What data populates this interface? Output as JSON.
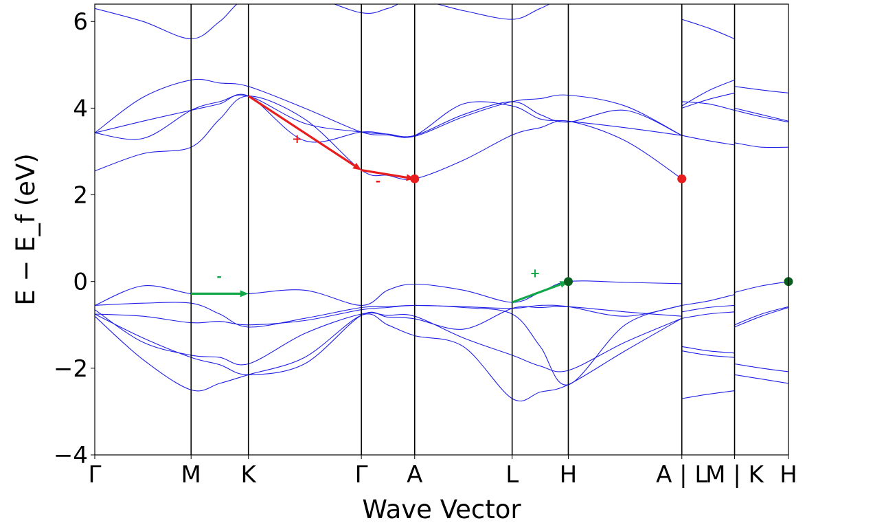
{
  "chart_data": {
    "type": "line",
    "xlabel": "Wave Vector",
    "ylabel": "E − E_f (eV)",
    "ylim": [
      -4,
      6.4
    ],
    "xlim": [
      0,
      12.1
    ],
    "grid": false,
    "yticks": [
      -4,
      -2,
      0,
      2,
      4,
      6
    ],
    "ytick_labels": [
      "−4",
      "−2",
      "0",
      "2",
      "4",
      "6"
    ],
    "xticks": [
      {
        "x": 0.0,
        "label": "Γ"
      },
      {
        "x": 1.68,
        "label": "M"
      },
      {
        "x": 2.68,
        "label": "K"
      },
      {
        "x": 4.65,
        "label": "Γ"
      },
      {
        "x": 5.58,
        "label": "A"
      },
      {
        "x": 7.28,
        "label": "L"
      },
      {
        "x": 8.26,
        "label": "H"
      },
      {
        "x": 10.24,
        "label": "A | L"
      },
      {
        "x": 11.16,
        "label": "M | K"
      },
      {
        "x": 12.1,
        "label": "H"
      }
    ],
    "band_color": "#1f1fe6",
    "series": [
      {
        "x": [
          0.0,
          0.84,
          1.68,
          2.18,
          2.68,
          3.66,
          4.65,
          5.11,
          5.58,
          6.43,
          7.28,
          7.77,
          8.26,
          9.25,
          10.24
        ],
        "values": [
          -0.75,
          -1.3,
          -1.75,
          -1.92,
          -2.15,
          -1.9,
          -0.78,
          -0.82,
          -0.86,
          -1.1,
          -0.62,
          -0.6,
          -0.58,
          -0.7,
          -0.8
        ]
      },
      {
        "x": [
          0.0,
          0.84,
          1.68,
          2.18,
          2.68,
          3.66,
          4.65,
          5.11,
          5.58,
          6.43,
          7.28,
          7.77,
          8.26,
          9.25,
          10.24
        ],
        "values": [
          -0.8,
          -1.8,
          -2.5,
          -2.35,
          -2.15,
          -1.75,
          -0.78,
          -1.0,
          -1.25,
          -1.5,
          -2.7,
          -2.55,
          -2.38,
          -1.6,
          -0.85
        ]
      },
      {
        "x": [
          0.0,
          0.84,
          1.68,
          2.18,
          2.68,
          3.66,
          4.65,
          5.11,
          5.58,
          6.43,
          7.28,
          7.77,
          8.26,
          9.25,
          10.24
        ],
        "values": [
          -0.65,
          -1.4,
          -1.7,
          -1.75,
          -1.9,
          -1.2,
          -0.75,
          -0.78,
          -0.8,
          -1.3,
          -1.7,
          -1.95,
          -2.05,
          -1.4,
          -0.85
        ]
      },
      {
        "x": [
          0.0,
          0.84,
          1.68,
          2.18,
          2.68,
          3.66,
          4.65,
          5.11,
          5.58,
          6.43,
          7.28,
          7.77,
          8.26,
          9.25,
          10.24
        ],
        "values": [
          -0.75,
          -0.8,
          -0.95,
          -0.92,
          -1.0,
          -0.9,
          -0.65,
          -0.6,
          -0.55,
          -0.6,
          -0.75,
          -1.5,
          -2.38,
          -1.0,
          -0.55
        ]
      },
      {
        "x": [
          0.0,
          0.84,
          1.68,
          2.18,
          2.68,
          3.66,
          4.65,
          5.11,
          5.58,
          6.43,
          7.28,
          7.77,
          8.26,
          9.25,
          10.24
        ],
        "values": [
          -0.55,
          -0.5,
          -0.5,
          -0.75,
          -1.05,
          -0.85,
          -0.6,
          -0.58,
          -0.55,
          -0.58,
          -0.62,
          -0.55,
          -0.58,
          -0.8,
          -0.55
        ]
      },
      {
        "x": [
          0.0,
          0.84,
          1.68,
          2.18,
          2.68,
          3.66,
          4.65,
          5.11,
          5.58,
          6.43,
          7.28,
          7.77,
          8.26,
          9.25,
          10.24
        ],
        "values": [
          -0.55,
          -0.1,
          -0.28,
          -0.28,
          -0.28,
          -0.2,
          -0.55,
          -0.2,
          -0.06,
          -0.2,
          -0.48,
          -0.25,
          0.0,
          -0.02,
          -0.05
        ]
      },
      {
        "x": [
          0.0,
          0.84,
          1.68,
          2.18,
          2.68,
          3.66,
          4.65,
          5.11,
          5.58,
          6.43,
          7.28,
          7.77,
          8.26,
          9.25,
          10.24
        ],
        "values": [
          2.55,
          2.95,
          3.1,
          3.75,
          4.28,
          3.75,
          2.57,
          2.45,
          2.37,
          2.8,
          3.38,
          3.55,
          3.7,
          3.25,
          2.37
        ]
      },
      {
        "x": [
          0.0,
          0.84,
          1.68,
          2.18,
          2.68,
          3.66,
          4.65,
          5.11,
          5.58,
          6.43,
          7.28,
          7.77,
          8.26,
          9.25,
          10.24
        ],
        "values": [
          3.43,
          3.3,
          3.95,
          4.15,
          4.28,
          3.65,
          3.45,
          3.4,
          3.37,
          3.85,
          4.15,
          3.85,
          3.68,
          3.95,
          3.37
        ]
      },
      {
        "x": [
          0.0,
          0.84,
          1.68,
          2.18,
          2.68,
          3.66,
          4.65,
          5.11,
          5.58,
          6.43,
          7.28,
          7.77,
          8.26,
          9.25,
          10.24
        ],
        "values": [
          3.43,
          3.7,
          3.95,
          4.1,
          4.28,
          3.25,
          3.45,
          3.4,
          3.37,
          4.1,
          4.05,
          3.75,
          3.7,
          3.55,
          3.37
        ]
      },
      {
        "x": [
          0.0,
          0.84,
          1.68,
          2.18,
          2.68,
          3.66,
          4.65,
          5.11,
          5.58,
          6.43,
          7.28,
          7.77,
          8.26,
          9.25,
          10.24
        ],
        "values": [
          3.43,
          4.25,
          4.65,
          4.58,
          4.5,
          4.0,
          3.45,
          3.38,
          3.35,
          3.8,
          4.15,
          4.22,
          4.3,
          4.05,
          3.37
        ]
      },
      {
        "x": [
          0.0,
          0.84,
          1.68,
          2.18,
          2.68,
          3.66,
          4.65,
          5.11,
          5.58,
          6.43,
          7.28,
          7.77,
          8.26,
          9.25,
          10.24
        ],
        "values": [
          6.3,
          6.0,
          5.6,
          6.0,
          6.55,
          6.6,
          6.2,
          6.3,
          6.5,
          6.25,
          6.05,
          6.3,
          6.55,
          6.6,
          6.55
        ]
      },
      {
        "x": [
          10.24,
          10.7,
          11.16
        ],
        "values": [
          -0.55,
          -0.45,
          -0.3
        ]
      },
      {
        "x": [
          10.24,
          10.7,
          11.16
        ],
        "values": [
          -0.7,
          -0.6,
          -0.55
        ]
      },
      {
        "x": [
          10.24,
          10.7,
          11.16
        ],
        "values": [
          -0.85,
          -0.75,
          -0.7
        ]
      },
      {
        "x": [
          10.24,
          10.7,
          11.16
        ],
        "values": [
          -1.5,
          -1.6,
          -1.65
        ]
      },
      {
        "x": [
          10.24,
          10.7,
          11.16
        ],
        "values": [
          -1.6,
          -1.7,
          -1.75
        ]
      },
      {
        "x": [
          10.24,
          10.7,
          11.16
        ],
        "values": [
          -2.7,
          -2.6,
          -2.52
        ]
      },
      {
        "x": [
          10.24,
          10.7,
          11.16
        ],
        "values": [
          3.37,
          3.25,
          3.15
        ]
      },
      {
        "x": [
          10.24,
          10.7,
          11.16
        ],
        "values": [
          4.15,
          4.1,
          3.95
        ]
      },
      {
        "x": [
          10.24,
          10.7,
          11.16
        ],
        "values": [
          4.0,
          4.2,
          4.35
        ]
      },
      {
        "x": [
          10.24,
          10.7,
          11.16
        ],
        "values": [
          4.05,
          4.4,
          4.65
        ]
      },
      {
        "x": [
          10.24,
          10.7,
          11.16
        ],
        "values": [
          6.05,
          5.85,
          5.6
        ]
      },
      {
        "x": [
          11.16,
          11.63,
          12.1
        ],
        "values": [
          -0.25,
          -0.1,
          0.0
        ]
      },
      {
        "x": [
          11.16,
          11.63,
          12.1
        ],
        "values": [
          -1.0,
          -0.75,
          -0.58
        ]
      },
      {
        "x": [
          11.16,
          11.63,
          12.1
        ],
        "values": [
          -1.05,
          -0.8,
          -0.6
        ]
      },
      {
        "x": [
          11.16,
          11.63,
          12.1
        ],
        "values": [
          -1.9,
          -2.0,
          -2.08
        ]
      },
      {
        "x": [
          11.16,
          11.63,
          12.1
        ],
        "values": [
          -2.15,
          -2.25,
          -2.35
        ]
      },
      {
        "x": [
          11.16,
          11.63,
          12.1
        ],
        "values": [
          3.2,
          3.1,
          3.1
        ]
      },
      {
        "x": [
          11.16,
          11.63,
          12.1
        ],
        "values": [
          3.95,
          3.8,
          3.68
        ]
      },
      {
        "x": [
          11.16,
          11.63,
          12.1
        ],
        "values": [
          4.0,
          3.85,
          3.7
        ]
      },
      {
        "x": [
          11.16,
          11.63,
          12.1
        ],
        "values": [
          4.5,
          4.42,
          4.35
        ]
      }
    ],
    "markers": [
      {
        "x": 5.58,
        "y": 2.37,
        "color": "#e81d1d"
      },
      {
        "x": 10.24,
        "y": 2.37,
        "color": "#e81d1d"
      },
      {
        "x": 8.26,
        "y": 0.0,
        "color": "#0a5f1e"
      },
      {
        "x": 12.1,
        "y": 0.0,
        "color": "#0a5f1e"
      }
    ],
    "arrows": [
      {
        "x1": 2.68,
        "y1": 4.28,
        "x2": 4.65,
        "y2": 2.57,
        "color": "#e81d1d"
      },
      {
        "x1": 4.65,
        "y1": 2.57,
        "x2": 5.58,
        "y2": 2.37,
        "color": "#e81d1d"
      },
      {
        "x1": 1.68,
        "y1": -0.28,
        "x2": 2.68,
        "y2": -0.28,
        "color": "#12a84a"
      },
      {
        "x1": 7.28,
        "y1": -0.48,
        "x2": 8.26,
        "y2": 0.0,
        "color": "#12a84a"
      }
    ],
    "annotations": [
      {
        "text": "+",
        "x": 3.53,
        "y": 3.2,
        "color": "#e81d1d"
      },
      {
        "text": "-",
        "x": 4.94,
        "y": 2.22,
        "color": "#e81d1d"
      },
      {
        "text": "-",
        "x": 2.17,
        "y": 0.02,
        "color": "#12a84a"
      },
      {
        "text": "+",
        "x": 7.68,
        "y": 0.1,
        "color": "#12a84a"
      }
    ]
  }
}
